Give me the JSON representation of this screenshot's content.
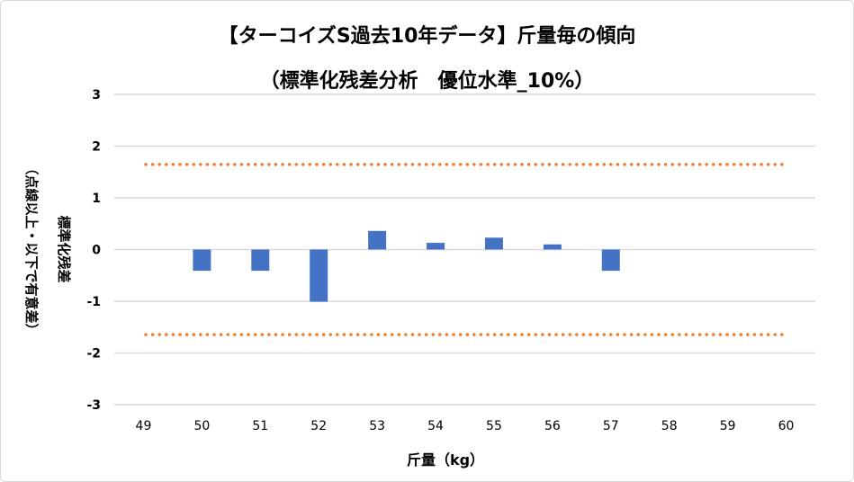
{
  "chart_data": {
    "type": "bar",
    "title": "【ターコイズS過去10年データ】斤量毎の傾向",
    "subtitle": "（標準化残差分析　優位水準_10%）",
    "xlabel": "斤量（kg）",
    "ylabel": "標準化残差",
    "ylabel_note": "（点線以上・以下で有意差）",
    "categories": [
      "49",
      "50",
      "51",
      "52",
      "53",
      "54",
      "55",
      "56",
      "57",
      "58",
      "59",
      "60"
    ],
    "values": [
      null,
      -0.41,
      -0.41,
      -1.01,
      0.36,
      0.13,
      0.23,
      0.1,
      -0.41,
      null,
      null,
      null
    ],
    "ylim": [
      -3,
      3
    ],
    "yticks": [
      "3",
      "2",
      "1",
      "0",
      "-1",
      "-2",
      "-3"
    ],
    "threshold_lines": [
      1.645,
      -1.645
    ],
    "grid": true,
    "colors": {
      "bar": "#4472c4",
      "threshold": "#ed7d31",
      "grid": "#d9d9d9"
    }
  }
}
